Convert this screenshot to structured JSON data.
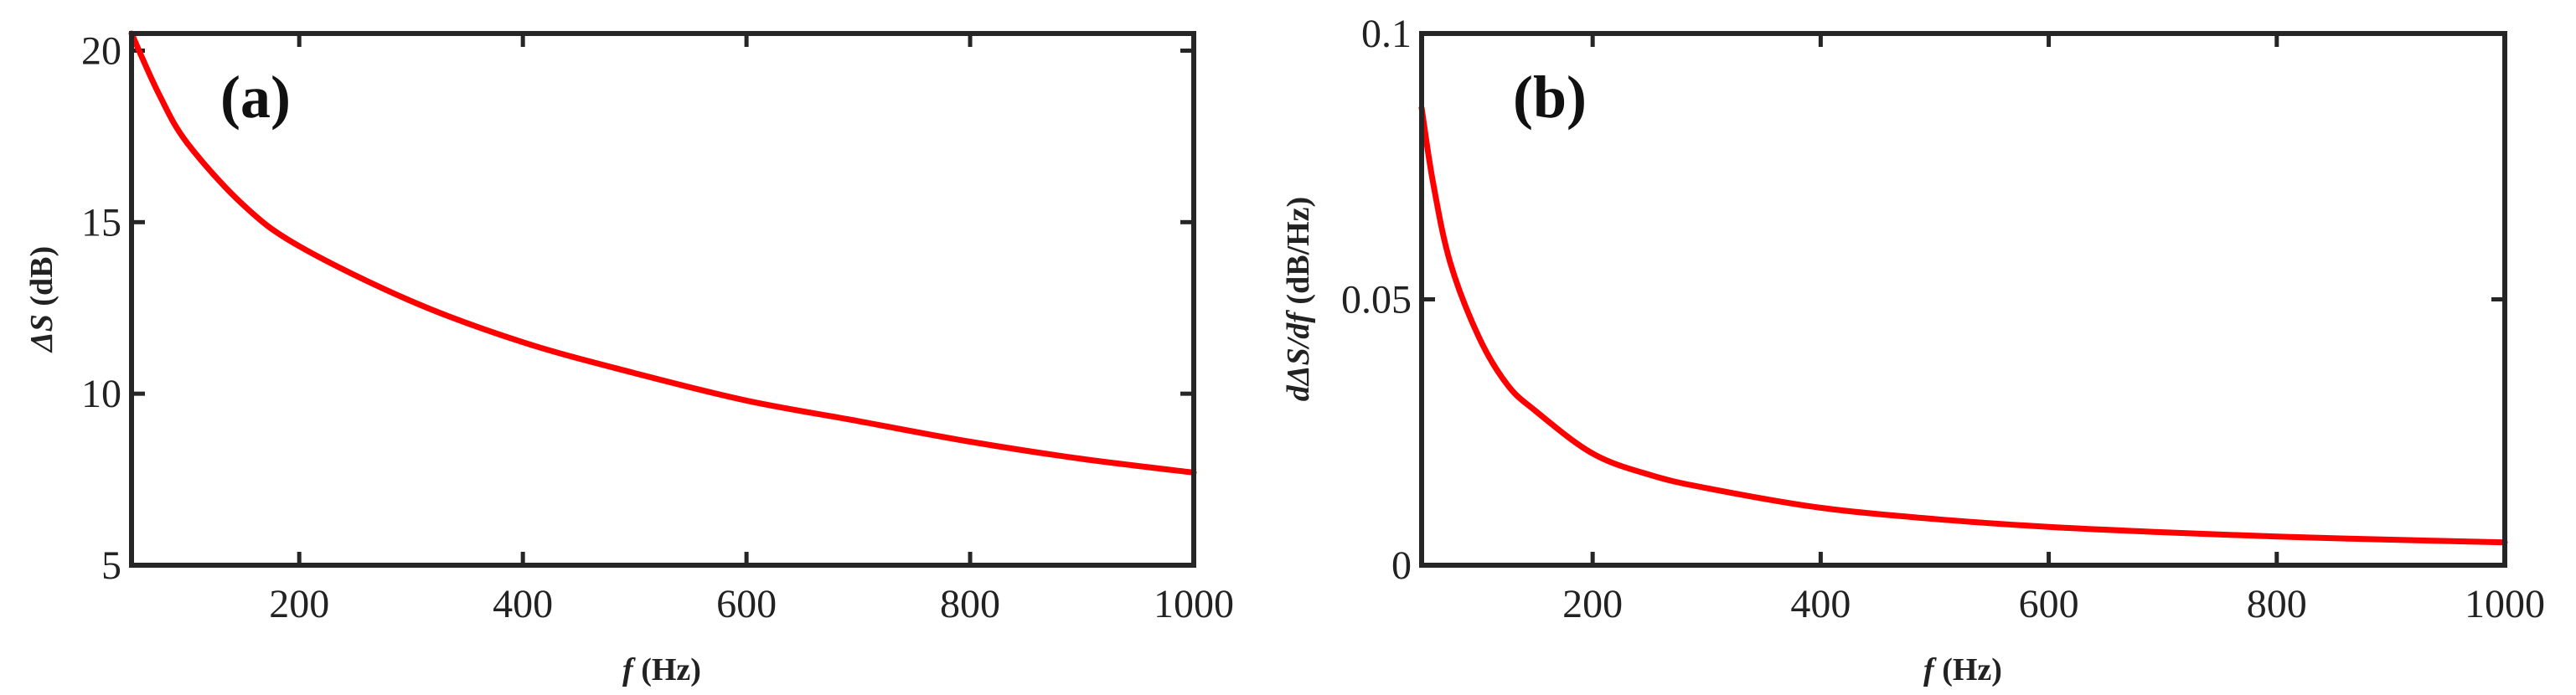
{
  "chart_data": [
    {
      "type": "line",
      "panel_label": "(a)",
      "xlabel": {
        "symbol": "f",
        "unit": "(Hz)"
      },
      "ylabel": {
        "symbol": "ΔS",
        "unit": "(dB)"
      },
      "xlim": [
        50,
        1000
      ],
      "ylim": [
        5,
        20.5
      ],
      "x_ticks": [
        200,
        400,
        600,
        800,
        1000
      ],
      "y_ticks": [
        5,
        10,
        15,
        20
      ],
      "x_tick_labels": [
        "200",
        "400",
        "600",
        "800",
        "1000"
      ],
      "y_tick_labels": [
        "5",
        "10",
        "15",
        "20"
      ],
      "series": [
        {
          "name": "ΔS",
          "color": "#ff0000",
          "x": [
            50,
            75,
            100,
            150,
            200,
            300,
            400,
            500,
            600,
            700,
            800,
            900,
            1000
          ],
          "y": [
            20.5,
            18.7,
            17.3,
            15.5,
            14.3,
            12.7,
            11.5,
            10.6,
            9.8,
            9.2,
            8.6,
            8.1,
            7.7
          ]
        }
      ]
    },
    {
      "type": "line",
      "panel_label": "(b)",
      "xlabel": {
        "symbol": "f",
        "unit": "(Hz)"
      },
      "ylabel": {
        "symbol": "dΔS/df",
        "unit": "(dB/Hz)"
      },
      "xlim": [
        50,
        1000
      ],
      "ylim": [
        0,
        0.1
      ],
      "x_ticks": [
        200,
        400,
        600,
        800,
        1000
      ],
      "y_ticks": [
        0,
        0.05,
        0.1
      ],
      "x_tick_labels": [
        "200",
        "400",
        "600",
        "800",
        "1000"
      ],
      "y_tick_labels": [
        "0",
        "0.05",
        "0.1"
      ],
      "series": [
        {
          "name": "dΔS/df",
          "color": "#ff0000",
          "x": [
            50,
            60,
            75,
            100,
            125,
            150,
            200,
            250,
            300,
            400,
            500,
            600,
            700,
            800,
            900,
            1000
          ],
          "y": [
            0.086,
            0.072,
            0.057,
            0.043,
            0.034,
            0.029,
            0.021,
            0.017,
            0.0145,
            0.0108,
            0.0087,
            0.0072,
            0.0062,
            0.0054,
            0.0048,
            0.0043
          ]
        }
      ]
    }
  ]
}
